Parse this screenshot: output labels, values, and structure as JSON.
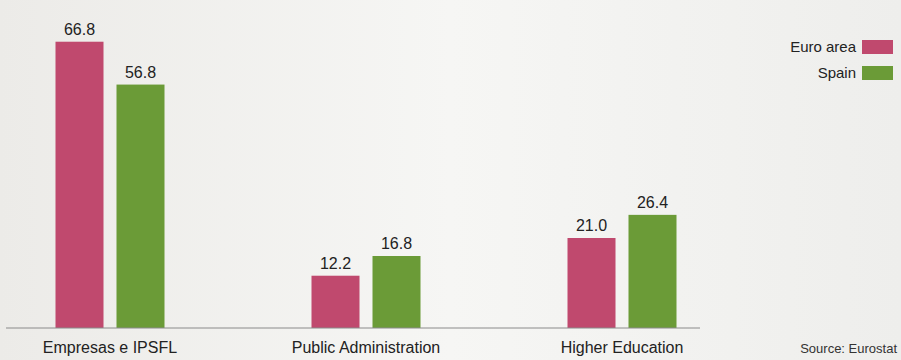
{
  "chart_data": {
    "type": "bar",
    "categories": [
      "Empresas e IPSFL",
      "Public Administration",
      "Higher Education"
    ],
    "series": [
      {
        "name": "Euro area",
        "color": "#c0496e",
        "values": [
          66.8,
          12.2,
          21.0
        ],
        "value_labels": [
          "66.8",
          "12.2",
          "21.0"
        ]
      },
      {
        "name": "Spain",
        "color": "#6b9b37",
        "values": [
          56.8,
          16.8,
          26.4
        ]
      }
    ],
    "ylim": [
      0,
      70
    ],
    "data_labels": true,
    "tick_labels": false,
    "grid": false,
    "legend": "top-right",
    "annotations": [
      "Source: Eurostat"
    ]
  }
}
